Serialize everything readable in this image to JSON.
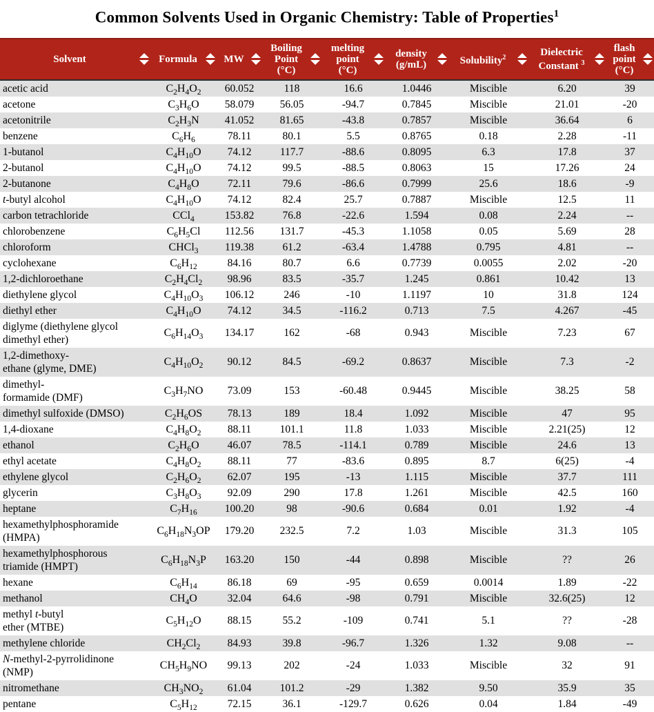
{
  "title": "Common Solvents Used in Organic Chemistry: Table of Properties^1^",
  "colors": {
    "header_bg": "#B1241A",
    "header_text": "#FFFFFF",
    "header_border": "#2E2E2E",
    "row_stripe": "#E0E0E0"
  },
  "icons": {
    "sort": "sort-diamond (up and down triangles)"
  },
  "table": {
    "columns": [
      {
        "key": "solvent",
        "label": "Solvent",
        "sortable": true
      },
      {
        "key": "formula",
        "label": "Formula",
        "sortable": true
      },
      {
        "key": "mw",
        "label": "MW",
        "sortable": true
      },
      {
        "key": "boiling-point",
        "label": "Boiling\nPoint\n(°C)",
        "sortable": true
      },
      {
        "key": "melting-point",
        "label": "melting\npoint\n(°C)",
        "sortable": true
      },
      {
        "key": "density",
        "label": "density\n(g/mL)",
        "sortable": true
      },
      {
        "key": "solubility",
        "label": "Solubility^2^",
        "sortable": true
      },
      {
        "key": "dielectric-constant",
        "label": "Dielectric\nConstant ^3^",
        "sortable": true
      },
      {
        "key": "flash-point",
        "label": "flash\npoint\n(°C)",
        "sortable": true
      }
    ],
    "rows": [
      [
        "acetic acid",
        "C2H4O2",
        "60.052",
        "118",
        "16.6",
        "1.0446",
        "Miscible",
        "6.20",
        "39"
      ],
      [
        "acetone",
        "C3H6O",
        "58.079",
        "56.05",
        "-94.7",
        "0.7845",
        "Miscible",
        "21.01",
        "-20"
      ],
      [
        "acetonitrile",
        "C2H3N",
        "41.052",
        "81.65",
        "-43.8",
        "0.7857",
        "Miscible",
        "36.64",
        "6"
      ],
      [
        "benzene",
        "C6H6",
        "78.11",
        "80.1",
        "5.5",
        "0.8765",
        "0.18",
        "2.28",
        "-11"
      ],
      [
        "1-butanol",
        "C4H10O",
        "74.12",
        "117.7",
        "-88.6",
        "0.8095",
        "6.3",
        "17.8",
        "37"
      ],
      [
        "2-butanol",
        "C4H10O",
        "74.12",
        "99.5",
        "-88.5",
        "0.8063",
        "15",
        "17.26",
        "24"
      ],
      [
        "2-butanone",
        "C4H8O",
        "72.11",
        "79.6",
        "-86.6",
        "0.7999",
        "25.6",
        "18.6",
        "-9"
      ],
      [
        "*t*-butyl alcohol",
        "C4H10O",
        "74.12",
        "82.4",
        "25.7",
        "0.7887",
        "Miscible",
        "12.5",
        "11"
      ],
      [
        "carbon tetrachloride",
        "CCl4",
        "153.82",
        "76.8",
        "-22.6",
        "1.594",
        "0.08",
        "2.24",
        "--"
      ],
      [
        "chlorobenzene",
        "C6H5Cl",
        "112.56",
        "131.7",
        "-45.3",
        "1.1058",
        "0.05",
        "5.69",
        "28"
      ],
      [
        "chloroform",
        "CHCl3",
        "119.38",
        "61.2",
        "-63.4",
        "1.4788",
        "0.795",
        "4.81",
        "--"
      ],
      [
        "cyclohexane",
        "C6H12",
        "84.16",
        "80.7",
        "6.6",
        "0.7739",
        "0.0055",
        "2.02",
        "-20"
      ],
      [
        "1,2-dichloroethane",
        "C2H4Cl2",
        "98.96",
        "83.5",
        "-35.7",
        "1.245",
        "0.861",
        "10.42",
        "13"
      ],
      [
        "diethylene glycol",
        "C4H10O3",
        "106.12",
        "246",
        "-10",
        "1.1197",
        "10",
        "31.8",
        "124"
      ],
      [
        "diethyl ether",
        "C4H10O",
        "74.12",
        "34.5",
        "-116.2",
        "0.713",
        "7.5",
        "4.267",
        "-45"
      ],
      [
        "diglyme (diethylene glycol\ndimethyl ether)",
        "C6H14O3",
        "134.17",
        "162",
        "-68",
        "0.943",
        "Miscible",
        "7.23",
        "67"
      ],
      [
        "1,2-dimethoxy-\nethane (glyme, DME)",
        "C4H10O2",
        "90.12",
        "84.5",
        "-69.2",
        "0.8637",
        "Miscible",
        "7.3",
        "-2"
      ],
      [
        "dimethyl-\nformamide (DMF)",
        "C3H7NO",
        "73.09",
        "153",
        "-60.48",
        "0.9445",
        "Miscible",
        "38.25",
        "58"
      ],
      [
        "dimethyl sulfoxide (DMSO)",
        "C2H6OS",
        "78.13",
        "189",
        "18.4",
        "1.092",
        "Miscible",
        "47",
        "95"
      ],
      [
        "1,4-dioxane",
        "C4H8O2",
        "88.11",
        "101.1",
        "11.8",
        "1.033",
        "Miscible",
        "2.21(25)",
        "12"
      ],
      [
        "ethanol",
        "C2H6O",
        "46.07",
        "78.5",
        "-114.1",
        "0.789",
        "Miscible",
        "24.6",
        "13"
      ],
      [
        "ethyl acetate",
        "C4H8O2",
        "88.11",
        "77",
        "-83.6",
        "0.895",
        "8.7",
        "6(25)",
        "-4"
      ],
      [
        "ethylene glycol",
        "C2H6O2",
        "62.07",
        "195",
        "-13",
        "1.115",
        "Miscible",
        "37.7",
        "111"
      ],
      [
        "glycerin",
        "C3H8O3",
        "92.09",
        "290",
        "17.8",
        "1.261",
        "Miscible",
        "42.5",
        "160"
      ],
      [
        "heptane",
        "C7H16",
        "100.20",
        "98",
        "-90.6",
        "0.684",
        "0.01",
        "1.92",
        "-4"
      ],
      [
        "hexamethylphosphoramide\n(HMPA)",
        "C6H18N3OP",
        "179.20",
        "232.5",
        "7.2",
        "1.03",
        "Miscible",
        "31.3",
        "105"
      ],
      [
        "hexamethylphosphorous\ntriamide (HMPT)",
        "C6H18N3P",
        "163.20",
        "150",
        "-44",
        "0.898",
        "Miscible",
        "??",
        "26"
      ],
      [
        "hexane",
        "C6H14",
        "86.18",
        "69",
        "-95",
        "0.659",
        "0.0014",
        "1.89",
        "-22"
      ],
      [
        "methanol",
        "CH4O",
        "32.04",
        "64.6",
        "-98",
        "0.791",
        "Miscible",
        "32.6(25)",
        "12"
      ],
      [
        "methyl *t*-butyl\nether (MTBE)",
        "C5H12O",
        "88.15",
        "55.2",
        "-109",
        "0.741",
        "5.1",
        "??",
        "-28"
      ],
      [
        "methylene chloride",
        "CH2Cl2",
        "84.93",
        "39.8",
        "-96.7",
        "1.326",
        "1.32",
        "9.08",
        "--"
      ],
      [
        "*N*-methyl-2-pyrrolidinone\n(NMP)",
        "CH5H9NO",
        "99.13",
        "202",
        "-24",
        "1.033",
        "Miscible",
        "32",
        "91"
      ],
      [
        "nitromethane",
        "CH3NO2",
        "61.04",
        "101.2",
        "-29",
        "1.382",
        "9.50",
        "35.9",
        "35"
      ],
      [
        "pentane",
        "C5H12",
        "72.15",
        "36.1",
        "-129.7",
        "0.626",
        "0.04",
        "1.84",
        "-49"
      ]
    ]
  }
}
